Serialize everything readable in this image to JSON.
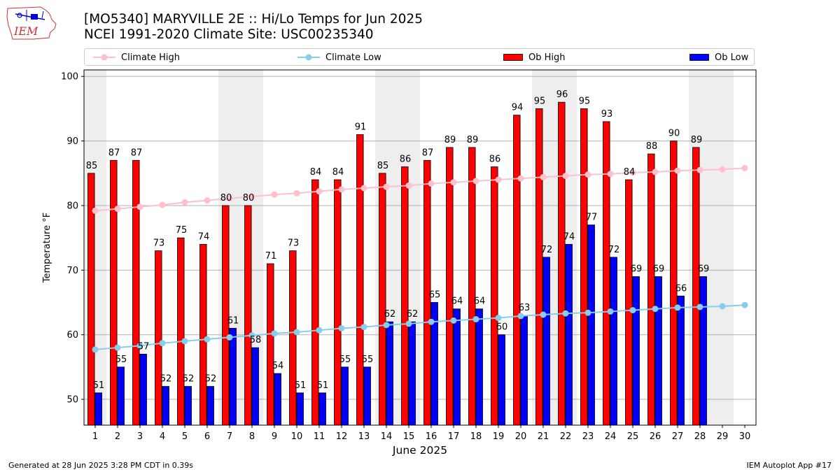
{
  "header": {
    "logo_text": "IEM",
    "title_line1": "[MO5340] MARYVILLE 2E :: Hi/Lo Temps for Jun 2025",
    "title_line2": "NCEI 1991-2020 Climate Site: USC00235340"
  },
  "legend": {
    "climate_high": "Climate High",
    "climate_low": "Climate Low",
    "ob_high": "Ob High",
    "ob_low": "Ob Low"
  },
  "footer": {
    "left": "Generated at 28 Jun 2025 3:28 PM CDT in 0.39s",
    "right": "IEM Autoplot App #17"
  },
  "colors": {
    "ob_high": "#ff0000",
    "ob_low": "#0000ff",
    "climate_high": "#ffc0cb",
    "climate_low": "#87ceeb",
    "weekend_band": "#eeeeee",
    "grid": "#b0b0b0"
  },
  "chart_data": {
    "type": "bar",
    "xlabel": "June 2025",
    "ylabel": "Temperature °F",
    "ylim": [
      46,
      101
    ],
    "yticks": [
      50,
      60,
      70,
      80,
      90,
      100
    ],
    "grid": true,
    "legend_position": "top",
    "weekend_days": [
      1,
      7,
      8,
      14,
      15,
      21,
      22,
      28,
      29
    ],
    "categories": [
      1,
      2,
      3,
      4,
      5,
      6,
      7,
      8,
      9,
      10,
      11,
      12,
      13,
      14,
      15,
      16,
      17,
      18,
      19,
      20,
      21,
      22,
      23,
      24,
      25,
      26,
      27,
      28,
      29,
      30
    ],
    "series": [
      {
        "name": "Ob High",
        "kind": "bar",
        "values": [
          85,
          87,
          87,
          73,
          75,
          74,
          80,
          80,
          71,
          73,
          84,
          84,
          91,
          85,
          86,
          87,
          89,
          89,
          86,
          94,
          95,
          96,
          95,
          93,
          84,
          88,
          90,
          89,
          null,
          null
        ]
      },
      {
        "name": "Ob Low",
        "kind": "bar",
        "values": [
          51,
          55,
          57,
          52,
          52,
          52,
          61,
          58,
          54,
          51,
          51,
          55,
          55,
          62,
          62,
          65,
          64,
          64,
          60,
          63,
          72,
          74,
          77,
          72,
          69,
          69,
          66,
          69,
          null,
          null
        ]
      },
      {
        "name": "Climate High",
        "kind": "line",
        "values": [
          79.2,
          79.5,
          79.8,
          80.1,
          80.5,
          80.8,
          81.1,
          81.4,
          81.7,
          81.9,
          82.2,
          82.5,
          82.7,
          82.9,
          83.1,
          83.4,
          83.6,
          83.8,
          84.0,
          84.2,
          84.4,
          84.6,
          84.8,
          84.9,
          85.1,
          85.2,
          85.4,
          85.5,
          85.6,
          85.8
        ]
      },
      {
        "name": "Climate Low",
        "kind": "line",
        "values": [
          57.7,
          58.0,
          58.3,
          58.7,
          59.0,
          59.3,
          59.6,
          59.9,
          60.2,
          60.4,
          60.7,
          61.0,
          61.2,
          61.5,
          61.7,
          62.0,
          62.2,
          62.4,
          62.6,
          62.9,
          63.1,
          63.3,
          63.4,
          63.6,
          63.8,
          64.0,
          64.2,
          64.3,
          64.4,
          64.6
        ]
      }
    ]
  }
}
